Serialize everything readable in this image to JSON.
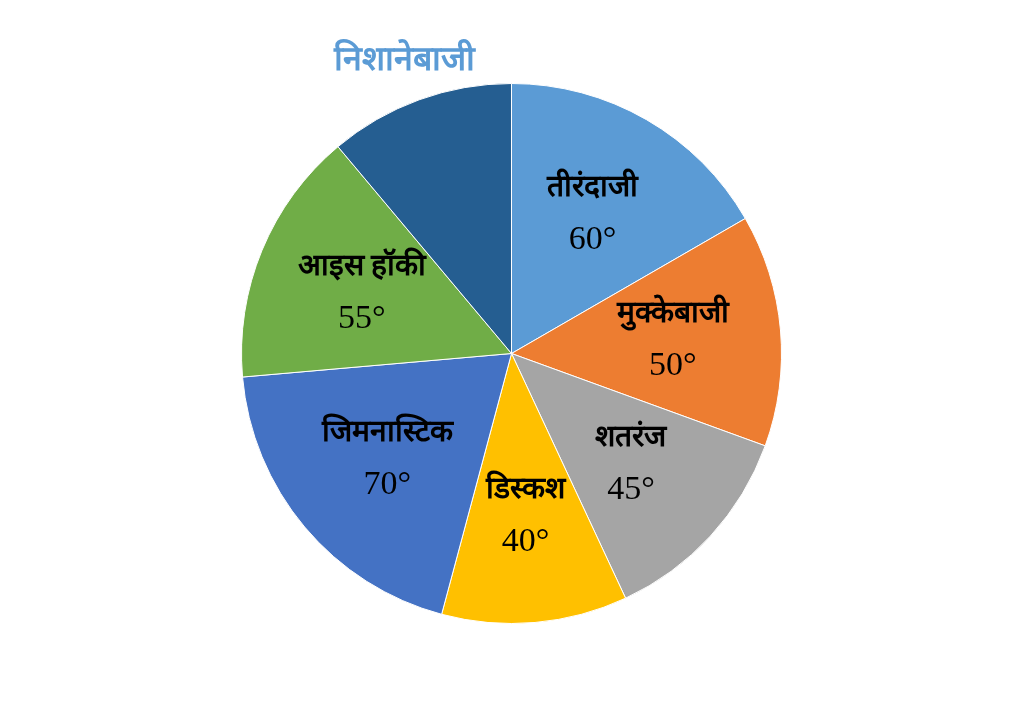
{
  "chart_data": {
    "type": "pie",
    "categories": [
      "तीरंदाजी",
      "मुक्केबाजी",
      "शतरंज",
      "डिस्कश",
      "जिमनास्टिक",
      "आइस हॉकी",
      "निशानेबाजी"
    ],
    "values": [
      60,
      50,
      45,
      40,
      70,
      55,
      40
    ],
    "colors": [
      "#5b9bd5",
      "#ed7d31",
      "#a5a5a5",
      "#ffc000",
      "#4472c4",
      "#70ad47",
      "#255e91"
    ],
    "value_labels": [
      "60°",
      "50°",
      "45°",
      "40°",
      "70°",
      "55°",
      null
    ]
  }
}
